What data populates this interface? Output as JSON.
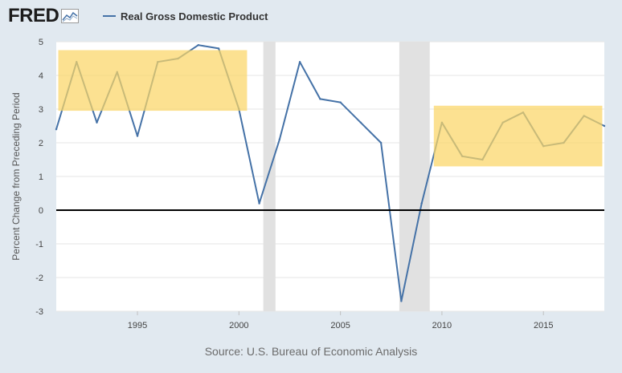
{
  "header": {
    "logo_text": "FRED",
    "legend_label": "Real Gross Domestic Product"
  },
  "source": "Source: U.S. Bureau of Economic Analysis",
  "colors": {
    "series": "#4572a7",
    "recession": "#e1e1e1",
    "highlight": "#fbd566",
    "zero_line": "#000000",
    "grid": "#e6e6e6",
    "background": "#e1e9f0"
  },
  "chart_data": {
    "type": "line",
    "title": "",
    "xlabel": "",
    "ylabel": "Percent Change from Preceding Period",
    "xlim": [
      1991.0,
      2018.0
    ],
    "ylim": [
      -3,
      5
    ],
    "yticks": [
      5,
      4,
      3,
      2,
      1,
      0,
      -1,
      -2,
      -3
    ],
    "ytick_labels": [
      "5",
      "4",
      "3",
      "2",
      "1",
      "0",
      "-1",
      "-2",
      "-3"
    ],
    "xticks": [
      1995,
      2000,
      2005,
      2010,
      2015
    ],
    "xtick_labels": [
      "1995",
      "2000",
      "2005",
      "2010",
      "2015"
    ],
    "grid": true,
    "zero_line": true,
    "series": [
      {
        "name": "Real Gross Domestic Product",
        "x": [
          1991,
          1992,
          1993,
          1994,
          1995,
          1996,
          1997,
          1998,
          1999,
          2000,
          2001,
          2002,
          2003,
          2004,
          2005,
          2006,
          2007,
          2008,
          2009,
          2010,
          2011,
          2012,
          2013,
          2014,
          2015,
          2016,
          2017,
          2018
        ],
        "y": [
          2.4,
          4.4,
          2.6,
          4.1,
          2.2,
          4.4,
          4.5,
          4.9,
          4.8,
          3.0,
          0.2,
          2.1,
          4.4,
          3.3,
          3.2,
          2.6,
          2.0,
          -2.7,
          0.2,
          2.6,
          1.6,
          1.5,
          2.6,
          2.9,
          1.9,
          2.0,
          2.8,
          2.5
        ]
      }
    ],
    "recession_bands": [
      {
        "x_start": 2001.2,
        "x_end": 2001.8
      },
      {
        "x_start": 2007.9,
        "x_end": 2009.4
      }
    ],
    "highlight_boxes": [
      {
        "x_start": 1991.1,
        "x_end": 2000.4,
        "y_start": 2.95,
        "y_end": 4.75
      },
      {
        "x_start": 2009.6,
        "x_end": 2017.9,
        "y_start": 1.3,
        "y_end": 3.1
      }
    ]
  }
}
